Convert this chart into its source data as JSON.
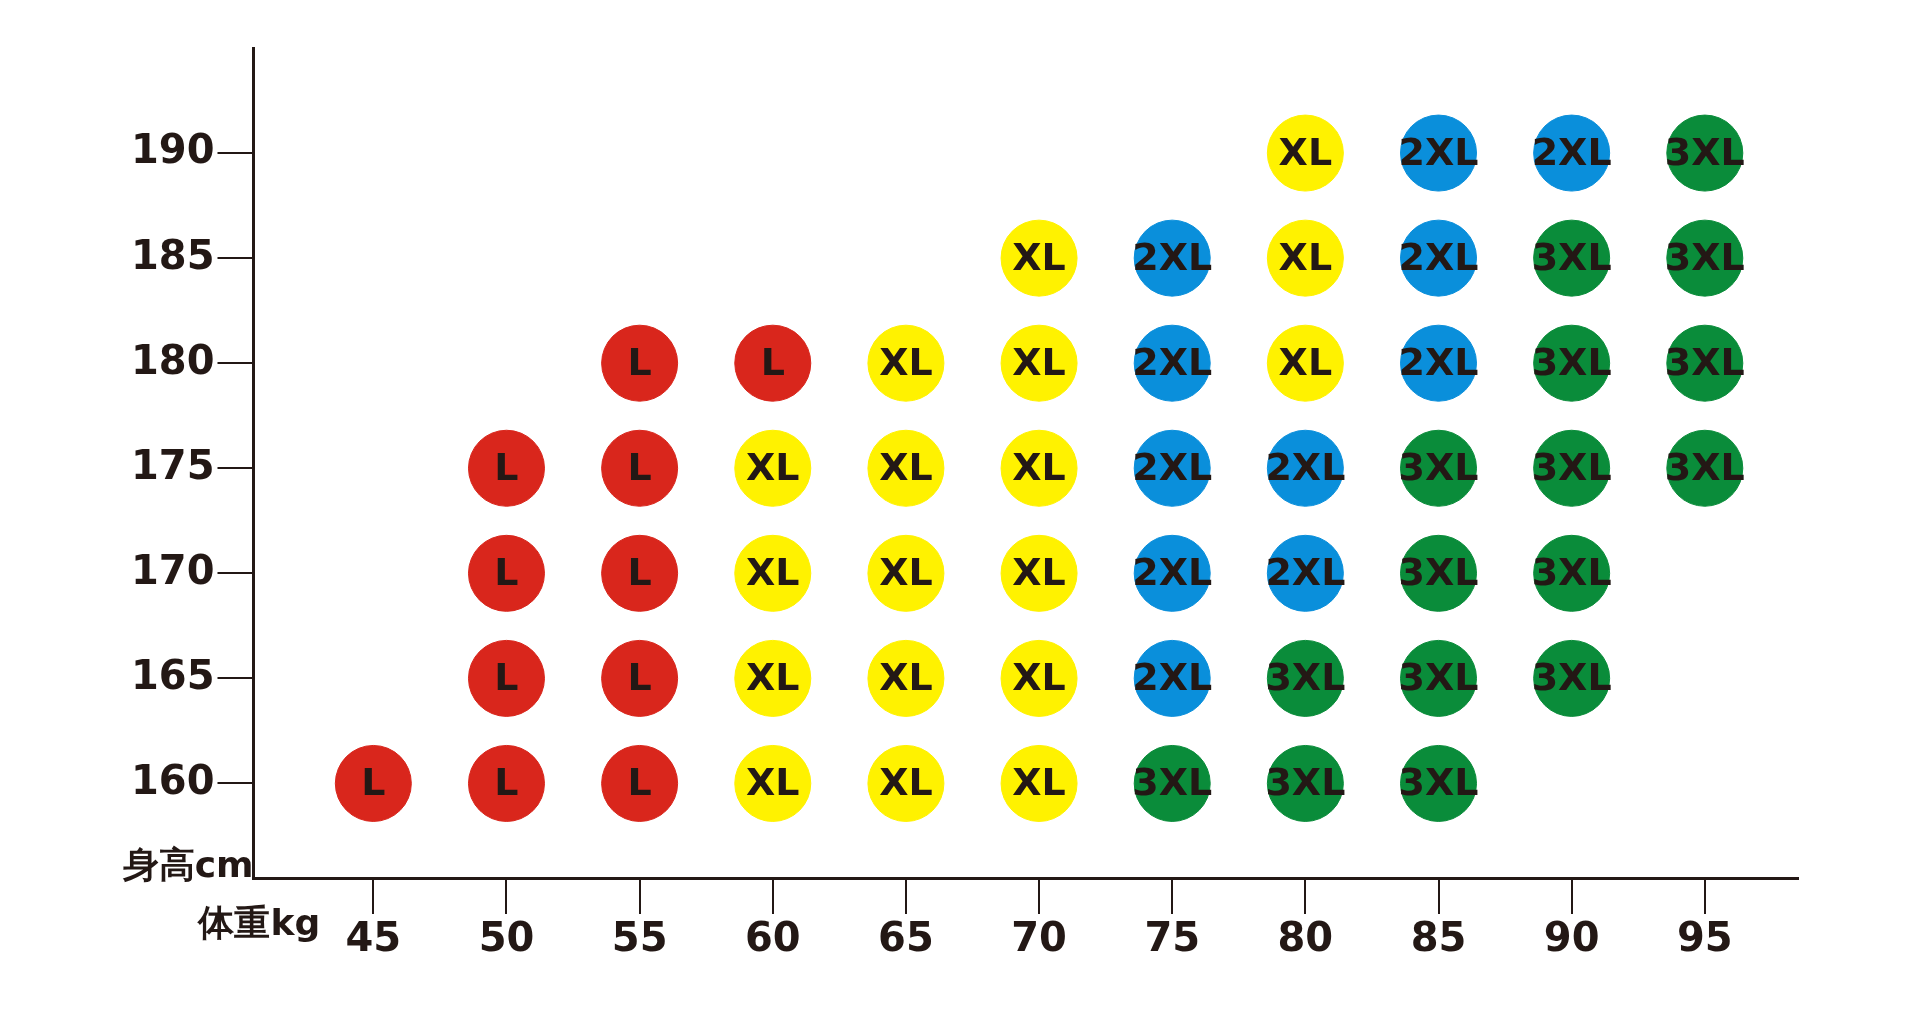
{
  "chart_data": {
    "type": "scatter",
    "xlabel": "体重kg",
    "ylabel": "身高cm",
    "xlim": [
      40.5,
      98.5
    ],
    "ylim": [
      155.5,
      195
    ],
    "xticks": [
      45,
      50,
      55,
      60,
      65,
      70,
      75,
      80,
      85,
      90,
      95
    ],
    "yticks": [
      160,
      165,
      170,
      175,
      180,
      185,
      190
    ],
    "marker": "circle",
    "legend": false,
    "series": [
      {
        "name": "L",
        "color": "#d9261c",
        "x": [
          55,
          60,
          50,
          55,
          50,
          55,
          50,
          55,
          45,
          50,
          55
        ],
        "values": [
          180,
          180,
          175,
          175,
          170,
          170,
          165,
          165,
          160,
          160,
          160
        ]
      },
      {
        "name": "XL",
        "color": "#fff200",
        "x": [
          80,
          70,
          80,
          65,
          70,
          80,
          60,
          65,
          70,
          60,
          65,
          70,
          60,
          65,
          70,
          60,
          65,
          70
        ],
        "values": [
          190,
          185,
          185,
          180,
          180,
          180,
          175,
          175,
          175,
          170,
          170,
          170,
          165,
          165,
          165,
          160,
          160,
          160
        ]
      },
      {
        "name": "2XL",
        "color": "#0a8fdb",
        "x": [
          85,
          90,
          75,
          85,
          75,
          85,
          75,
          80,
          75,
          80,
          75
        ],
        "values": [
          190,
          190,
          185,
          185,
          180,
          180,
          175,
          175,
          170,
          170,
          165
        ]
      },
      {
        "name": "3XL",
        "color": "#0a8c3a",
        "x": [
          95,
          90,
          95,
          90,
          95,
          85,
          90,
          95,
          85,
          90,
          80,
          85,
          90,
          75,
          80,
          85
        ],
        "values": [
          190,
          185,
          185,
          180,
          180,
          175,
          175,
          175,
          170,
          170,
          165,
          165,
          165,
          160,
          160,
          160
        ]
      }
    ]
  }
}
